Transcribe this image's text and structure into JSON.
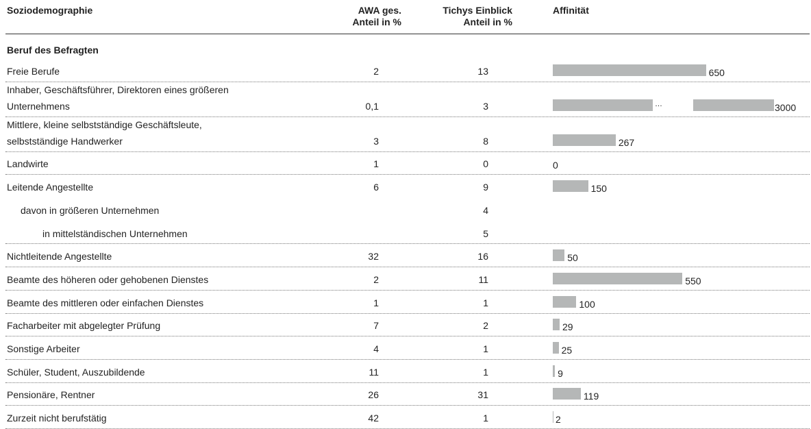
{
  "header": {
    "label": "Soziodemographie",
    "awa": [
      "AWA ges.",
      "Anteil in %"
    ],
    "tichy": [
      "Tichys Einblick",
      "Anteil in %"
    ],
    "affinity": "Affinität"
  },
  "table": {
    "section": "Beruf des Befragten",
    "bar_color": "#b5b7b7",
    "break_symbol": "…",
    "rows": [
      {
        "label": [
          "Freie Berufe"
        ],
        "awa": 2,
        "tichy": 13,
        "affinity": 650
      },
      {
        "label": [
          "Inhaber, Geschäftsführer, Direktoren eines größeren",
          "Unternehmens"
        ],
        "awa": "0,1",
        "tichy": 3,
        "affinity": 3000
      },
      {
        "label": [
          "Mittlere, kleine selbstständige Geschäftsleute,",
          "selbstständige Handwerker"
        ],
        "awa": 3,
        "tichy": 8,
        "affinity": 267
      },
      {
        "label": [
          "Landwirte"
        ],
        "awa": 1,
        "tichy": 0,
        "affinity": 0
      },
      {
        "label": [
          "Leitende Angestellte"
        ],
        "awa": 6,
        "tichy": 9,
        "affinity": 150
      },
      {
        "label": [
          "davon in größeren Unternehmen"
        ],
        "tichy": 4,
        "level": 1
      },
      {
        "label": [
          "in mittelständischen Unternehmen"
        ],
        "tichy": 5,
        "level": 2
      },
      {
        "label": [
          "Nichtleitende Angestellte"
        ],
        "awa": 32,
        "tichy": 16,
        "affinity": 50
      },
      {
        "label": [
          "Beamte des höheren oder gehobenen Dienstes"
        ],
        "awa": 2,
        "tichy": 11,
        "affinity": 550
      },
      {
        "label": [
          "Beamte des mittleren oder einfachen Dienstes"
        ],
        "awa": 1,
        "tichy": 1,
        "affinity": 100
      },
      {
        "label": [
          "Facharbeiter mit abgelegter Prüfung"
        ],
        "awa": 7,
        "tichy": 2,
        "affinity": 29
      },
      {
        "label": [
          "Sonstige Arbeiter"
        ],
        "awa": 4,
        "tichy": 1,
        "affinity": 25
      },
      {
        "label": [
          "Schüler, Student, Auszubildende"
        ],
        "awa": 11,
        "tichy": 1,
        "affinity": 9
      },
      {
        "label": [
          "Pensionäre, Rentner"
        ],
        "awa": 26,
        "tichy": 31,
        "affinity": 119
      },
      {
        "label": [
          "Zurzeit nicht berufstätig"
        ],
        "awa": 42,
        "tichy": 1,
        "affinity": 2
      }
    ]
  }
}
